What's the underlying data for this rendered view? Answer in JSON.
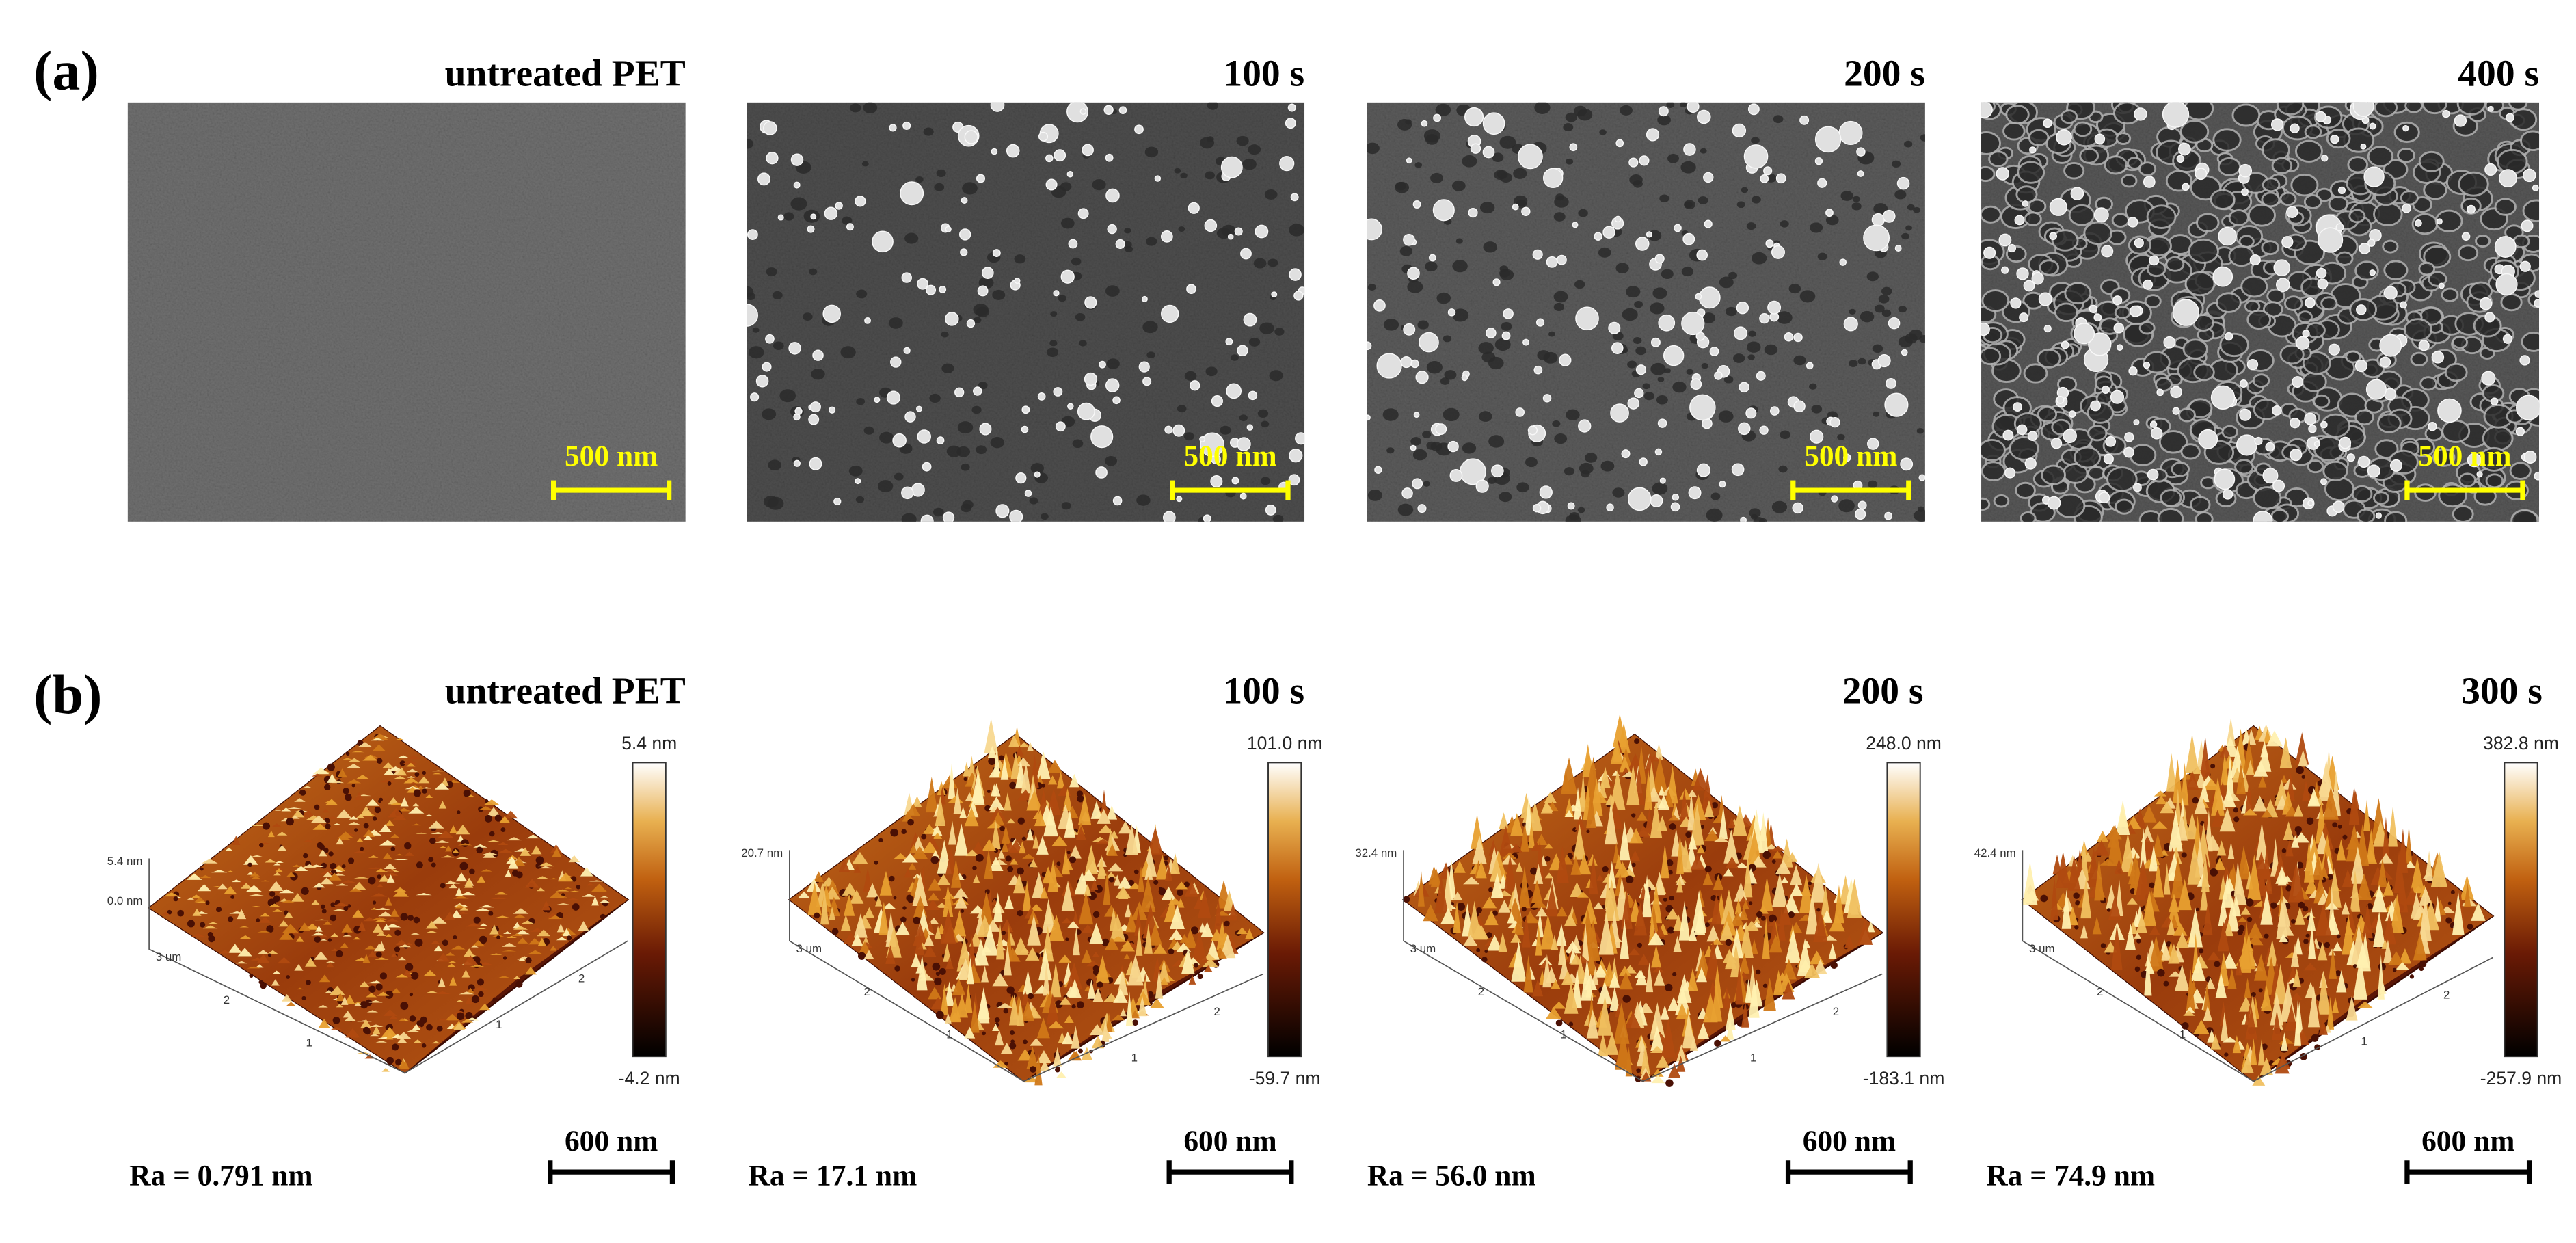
{
  "panel_a": {
    "label": "(a)",
    "images": [
      {
        "title": "untreated PET",
        "scale_bar": "500 nm"
      },
      {
        "title": "100 s",
        "scale_bar": "500 nm"
      },
      {
        "title": "200 s",
        "scale_bar": "500 nm"
      },
      {
        "title": "400 s",
        "scale_bar": "500 nm"
      }
    ]
  },
  "panel_b": {
    "label": "(b)",
    "images": [
      {
        "title": "untreated PET",
        "z_max": "5.4 nm",
        "z_min": "-4.2 nm",
        "z_axis": [
          "5.4 nm",
          "0.0 nm"
        ],
        "xy_axis": [
          "3 um",
          "2",
          "1",
          "2",
          "1"
        ],
        "ra": "Ra = 0.791 nm",
        "scale_bar": "600 nm"
      },
      {
        "title": "100 s",
        "z_max": "101.0 nm",
        "z_min": "-59.7 nm",
        "z_axis": [
          "20.7 nm"
        ],
        "xy_axis": [
          "3 um",
          "2",
          "1",
          "2",
          "1"
        ],
        "ra": "Ra = 17.1 nm",
        "scale_bar": "600 nm"
      },
      {
        "title": "200 s",
        "z_max": "248.0 nm",
        "z_min": "-183.1 nm",
        "z_axis": [
          "32.4 nm"
        ],
        "xy_axis": [
          "3 um",
          "2",
          "1",
          "2",
          "1"
        ],
        "ra": "Ra = 56.0 nm",
        "scale_bar": "600 nm"
      },
      {
        "title": "300 s",
        "z_max": "382.8 nm",
        "z_min": "-257.9 nm",
        "z_axis": [
          "42.4 nm"
        ],
        "xy_axis": [
          "3 um",
          "2",
          "1",
          "2",
          "1"
        ],
        "ra": "Ra = 74.9 nm",
        "scale_bar": "600 nm"
      }
    ]
  }
}
